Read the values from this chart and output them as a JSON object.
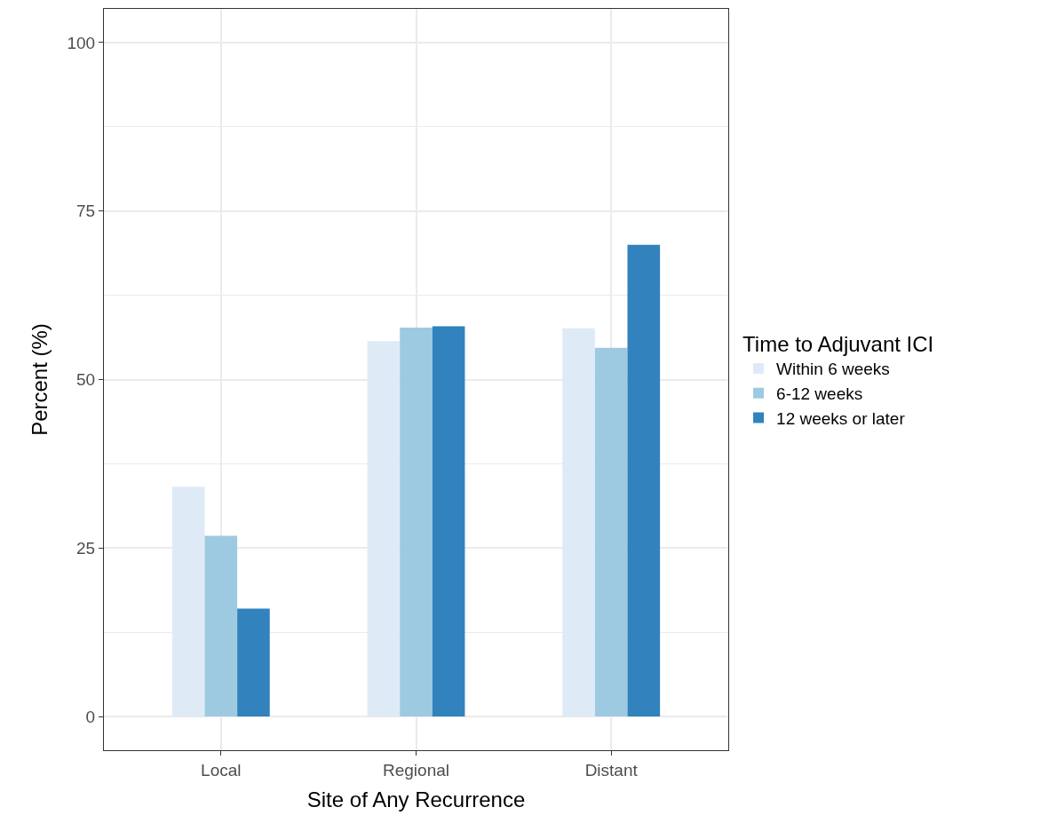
{
  "chart_data": {
    "type": "bar",
    "xlabel": "Site of Any Recurrence",
    "ylabel": "Percent (%)",
    "legend_title": "Time to Adjuvant ICI",
    "categories": [
      "Local",
      "Regional",
      "Distant"
    ],
    "series": [
      {
        "name": "Within 6 weeks",
        "color": "#deebf7",
        "values": [
          34.1,
          55.7,
          57.6
        ]
      },
      {
        "name": "6-12 weeks",
        "color": "#9ecae1",
        "values": [
          26.8,
          57.7,
          54.7
        ]
      },
      {
        "name": "12 weeks or later",
        "color": "#3182bd",
        "values": [
          16.0,
          57.9,
          70.0
        ]
      }
    ],
    "ylim": [
      -5,
      105
    ],
    "yticks": [
      0,
      25,
      50,
      75,
      100
    ],
    "grid": true,
    "legend": "right"
  }
}
